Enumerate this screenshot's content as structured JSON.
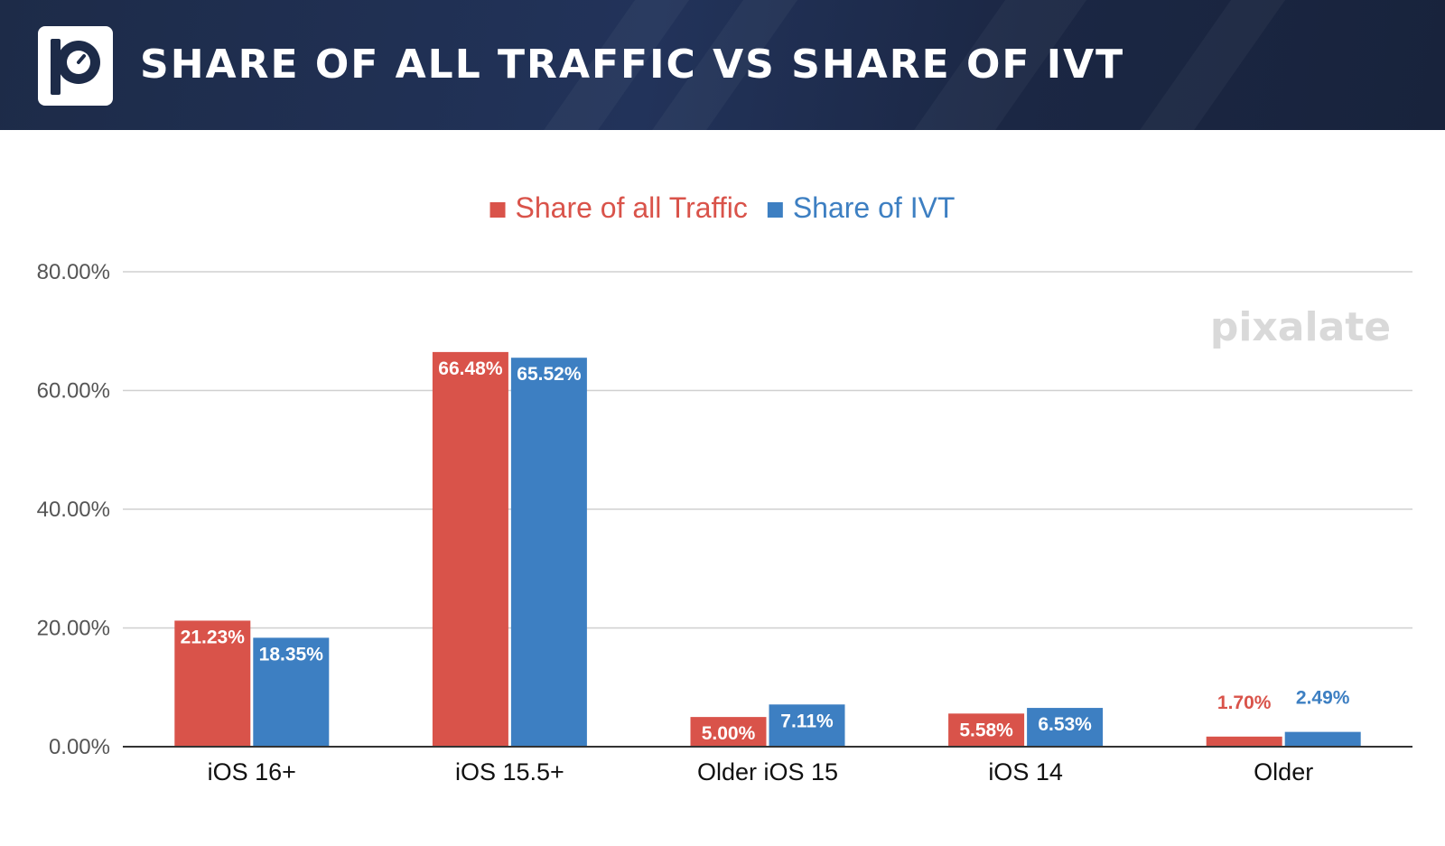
{
  "header": {
    "title": "SHARE OF ALL TRAFFIC VS SHARE OF IVT",
    "logo": "pixalate-logo-icon"
  },
  "watermark": "pixalate",
  "colors": {
    "header_bg": "#1d2b48",
    "traffic": "#d9534a",
    "ivt": "#3d7fc2",
    "grid": "#d0d0d0",
    "axis": "#333333"
  },
  "chart_data": {
    "type": "bar",
    "categories": [
      "iOS 16+",
      "iOS 15.5+",
      "Older iOS 15",
      "iOS 14",
      "Older"
    ],
    "series": [
      {
        "name": "Share of all Traffic",
        "values": [
          21.23,
          66.48,
          5.0,
          5.58,
          1.7
        ],
        "labels": [
          "21.23%",
          "66.48%",
          "5.00%",
          "5.58%",
          "1.70%"
        ]
      },
      {
        "name": "Share of IVT",
        "values": [
          18.35,
          65.52,
          7.11,
          6.53,
          2.49
        ],
        "labels": [
          "18.35%",
          "65.52%",
          "7.11%",
          "6.53%",
          "2.49%"
        ]
      }
    ],
    "ylim": [
      0,
      80
    ],
    "yticks": [
      0,
      20,
      40,
      60,
      80
    ],
    "ytick_labels": [
      "0.00%",
      "20.00%",
      "40.00%",
      "60.00%",
      "80.00%"
    ],
    "grid": true,
    "legend_position": "top-center",
    "xlabel": "",
    "ylabel": ""
  }
}
